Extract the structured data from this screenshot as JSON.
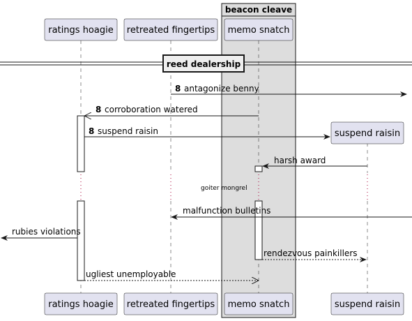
{
  "diagram": {
    "group": {
      "title": "beacon cleave"
    },
    "participants_top": [
      {
        "label": "ratings hoagie"
      },
      {
        "label": "retreated fingertips"
      },
      {
        "label": "memo snatch"
      },
      {
        "label": "suspend raisin"
      }
    ],
    "participants_bottom": [
      {
        "label": "ratings hoagie"
      },
      {
        "label": "retreated fingertips"
      },
      {
        "label": "memo snatch"
      },
      {
        "label": "suspend raisin"
      }
    ],
    "divider": {
      "label": "reed dealership"
    },
    "messages": [
      {
        "number": "8",
        "text": "antagonize benny"
      },
      {
        "number": "8",
        "text": "corroboration watered"
      },
      {
        "number": "8",
        "text": "suspend raisin"
      },
      {
        "number": "",
        "text": "harsh award"
      },
      {
        "number": "",
        "text": "malfunction bulletins"
      },
      {
        "number": "",
        "text": "rubies violations"
      },
      {
        "number": "",
        "text": "rendezvous painkillers"
      },
      {
        "number": "",
        "text": "ugliest unemployable"
      }
    ],
    "delay": {
      "text": "goiter mongrel"
    }
  }
}
